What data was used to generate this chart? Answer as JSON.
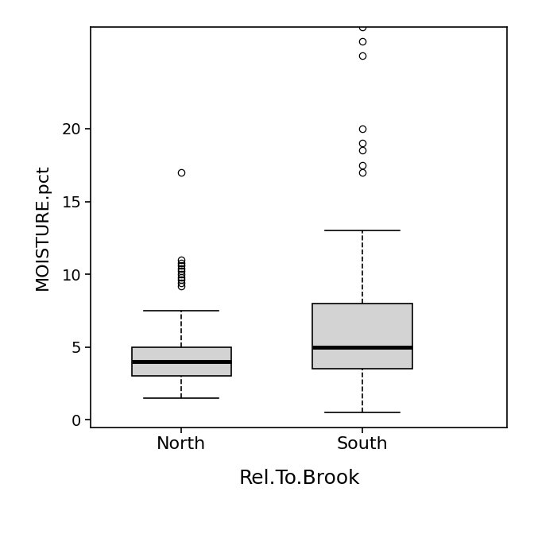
{
  "north": {
    "q1": 3.0,
    "median": 4.0,
    "q3": 5.0,
    "whisker_low": 1.5,
    "whisker_high": 7.5,
    "outliers": [
      17.0,
      11.0,
      10.8,
      10.6,
      10.4,
      10.2,
      10.0,
      9.8,
      9.6,
      9.4,
      9.2
    ]
  },
  "south": {
    "q1": 3.5,
    "median": 5.0,
    "q3": 8.0,
    "whisker_low": 0.5,
    "whisker_high": 13.0,
    "outliers": [
      17.0,
      17.5,
      18.5,
      19.0,
      20.0,
      25.0,
      26.0,
      27.0
    ]
  },
  "box_color": "#d3d3d3",
  "median_color": "#000000",
  "whisker_color": "#000000",
  "outlier_color": "#000000",
  "background_color": "#ffffff",
  "xlabel": "Rel.To.Brook",
  "ylabel": "MOISTURE.pct",
  "xlabel_color": "#000000",
  "ylabel_color": "#000000",
  "xlabel_fontsize": 18,
  "ylabel_fontsize": 16,
  "tick_labels": [
    "North",
    "South"
  ],
  "tick_fontsize": 16,
  "yticks": [
    0,
    5,
    10,
    15,
    20
  ],
  "ylim": [
    -0.5,
    27
  ],
  "xlim": [
    0.5,
    2.8
  ],
  "box_width": 0.55,
  "linewidth": 1.2,
  "median_linewidth": 3.5
}
